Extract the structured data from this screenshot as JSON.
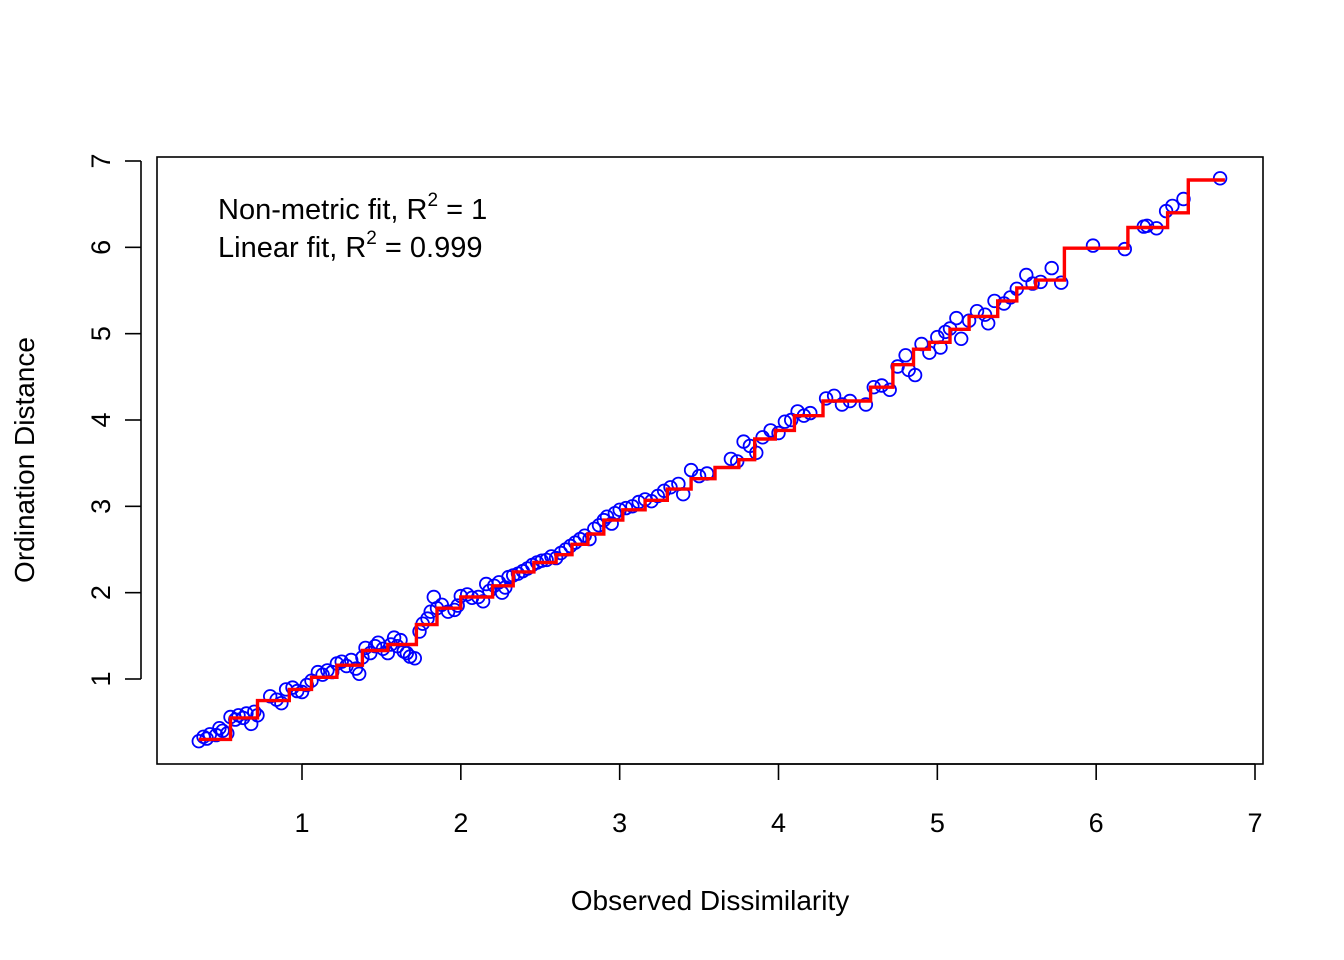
{
  "chart_data": {
    "type": "scatter",
    "title": "",
    "xlabel": "Observed Dissimilarity",
    "ylabel": "Ordination Distance",
    "xlim": [
      0.3,
      7.0
    ],
    "ylim": [
      0.25,
      7.0
    ],
    "x_ticks": [
      "1",
      "2",
      "3",
      "4",
      "5",
      "6",
      "7"
    ],
    "y_ticks": [
      "1",
      "2",
      "3",
      "4",
      "5",
      "6",
      "7"
    ],
    "grid": false,
    "legend": {
      "placement": "top-left",
      "nonmetric": {
        "label": "Non-metric fit, R",
        "sup": "2",
        "rest": " = 1"
      },
      "linear": {
        "label": "Linear fit, R",
        "sup": "2",
        "rest": " = 0.999"
      }
    },
    "colors": {
      "points": "#0000FF",
      "fit_line": "#FF0000",
      "axes": "#000000"
    },
    "series": [
      {
        "name": "Observed points",
        "style": "open-circle",
        "points": [
          [
            0.35,
            0.28
          ],
          [
            0.38,
            0.33
          ],
          [
            0.4,
            0.31
          ],
          [
            0.42,
            0.36
          ],
          [
            0.46,
            0.35
          ],
          [
            0.48,
            0.43
          ],
          [
            0.5,
            0.4
          ],
          [
            0.53,
            0.37
          ],
          [
            0.55,
            0.56
          ],
          [
            0.58,
            0.53
          ],
          [
            0.6,
            0.58
          ],
          [
            0.63,
            0.55
          ],
          [
            0.65,
            0.6
          ],
          [
            0.68,
            0.48
          ],
          [
            0.7,
            0.62
          ],
          [
            0.72,
            0.58
          ],
          [
            0.8,
            0.8
          ],
          [
            0.84,
            0.76
          ],
          [
            0.87,
            0.72
          ],
          [
            0.9,
            0.88
          ],
          [
            0.94,
            0.9
          ],
          [
            0.97,
            0.86
          ],
          [
            1.0,
            0.85
          ],
          [
            1.03,
            0.93
          ],
          [
            1.06,
            0.98
          ],
          [
            1.1,
            1.08
          ],
          [
            1.13,
            1.05
          ],
          [
            1.16,
            1.1
          ],
          [
            1.19,
            1.08
          ],
          [
            1.22,
            1.18
          ],
          [
            1.25,
            1.2
          ],
          [
            1.28,
            1.15
          ],
          [
            1.31,
            1.22
          ],
          [
            1.34,
            1.12
          ],
          [
            1.36,
            1.06
          ],
          [
            1.38,
            1.25
          ],
          [
            1.4,
            1.36
          ],
          [
            1.43,
            1.3
          ],
          [
            1.46,
            1.38
          ],
          [
            1.48,
            1.42
          ],
          [
            1.51,
            1.35
          ],
          [
            1.54,
            1.3
          ],
          [
            1.56,
            1.4
          ],
          [
            1.58,
            1.48
          ],
          [
            1.6,
            1.38
          ],
          [
            1.62,
            1.45
          ],
          [
            1.64,
            1.32
          ],
          [
            1.66,
            1.3
          ],
          [
            1.68,
            1.26
          ],
          [
            1.71,
            1.24
          ],
          [
            1.74,
            1.55
          ],
          [
            1.76,
            1.64
          ],
          [
            1.79,
            1.7
          ],
          [
            1.81,
            1.78
          ],
          [
            1.83,
            1.95
          ],
          [
            1.85,
            1.82
          ],
          [
            1.88,
            1.86
          ],
          [
            1.92,
            1.78
          ],
          [
            1.96,
            1.8
          ],
          [
            1.98,
            1.85
          ],
          [
            2.0,
            1.96
          ],
          [
            2.04,
            1.98
          ],
          [
            2.07,
            1.94
          ],
          [
            2.11,
            1.95
          ],
          [
            2.14,
            1.9
          ],
          [
            2.16,
            2.1
          ],
          [
            2.18,
            2.02
          ],
          [
            2.21,
            2.08
          ],
          [
            2.24,
            2.12
          ],
          [
            2.26,
            2.0
          ],
          [
            2.28,
            2.06
          ],
          [
            2.3,
            2.18
          ],
          [
            2.33,
            2.2
          ],
          [
            2.36,
            2.22
          ],
          [
            2.39,
            2.25
          ],
          [
            2.42,
            2.28
          ],
          [
            2.45,
            2.32
          ],
          [
            2.48,
            2.35
          ],
          [
            2.51,
            2.37
          ],
          [
            2.54,
            2.38
          ],
          [
            2.57,
            2.42
          ],
          [
            2.6,
            2.4
          ],
          [
            2.63,
            2.46
          ],
          [
            2.66,
            2.5
          ],
          [
            2.69,
            2.54
          ],
          [
            2.72,
            2.58
          ],
          [
            2.75,
            2.62
          ],
          [
            2.78,
            2.66
          ],
          [
            2.81,
            2.62
          ],
          [
            2.84,
            2.74
          ],
          [
            2.87,
            2.78
          ],
          [
            2.9,
            2.84
          ],
          [
            2.92,
            2.88
          ],
          [
            2.95,
            2.8
          ],
          [
            2.97,
            2.92
          ],
          [
            3.0,
            2.96
          ],
          [
            3.04,
            2.98
          ],
          [
            3.08,
            3.0
          ],
          [
            3.12,
            3.05
          ],
          [
            3.16,
            3.08
          ],
          [
            3.2,
            3.06
          ],
          [
            3.24,
            3.12
          ],
          [
            3.28,
            3.18
          ],
          [
            3.32,
            3.22
          ],
          [
            3.37,
            3.26
          ],
          [
            3.4,
            3.14
          ],
          [
            3.45,
            3.42
          ],
          [
            3.5,
            3.35
          ],
          [
            3.55,
            3.38
          ],
          [
            3.7,
            3.55
          ],
          [
            3.74,
            3.52
          ],
          [
            3.78,
            3.75
          ],
          [
            3.82,
            3.7
          ],
          [
            3.86,
            3.62
          ],
          [
            3.9,
            3.8
          ],
          [
            3.95,
            3.88
          ],
          [
            4.0,
            3.85
          ],
          [
            4.04,
            3.98
          ],
          [
            4.08,
            4.0
          ],
          [
            4.12,
            4.1
          ],
          [
            4.16,
            4.05
          ],
          [
            4.2,
            4.08
          ],
          [
            4.3,
            4.25
          ],
          [
            4.35,
            4.28
          ],
          [
            4.4,
            4.18
          ],
          [
            4.45,
            4.22
          ],
          [
            4.55,
            4.18
          ],
          [
            4.6,
            4.38
          ],
          [
            4.65,
            4.4
          ],
          [
            4.7,
            4.35
          ],
          [
            4.75,
            4.62
          ],
          [
            4.8,
            4.75
          ],
          [
            4.82,
            4.58
          ],
          [
            4.86,
            4.52
          ],
          [
            4.9,
            4.88
          ],
          [
            4.95,
            4.78
          ],
          [
            5.0,
            4.96
          ],
          [
            5.02,
            4.84
          ],
          [
            5.05,
            5.02
          ],
          [
            5.08,
            5.06
          ],
          [
            5.12,
            5.18
          ],
          [
            5.15,
            4.94
          ],
          [
            5.2,
            5.15
          ],
          [
            5.25,
            5.26
          ],
          [
            5.3,
            5.22
          ],
          [
            5.32,
            5.12
          ],
          [
            5.36,
            5.38
          ],
          [
            5.42,
            5.35
          ],
          [
            5.46,
            5.42
          ],
          [
            5.5,
            5.52
          ],
          [
            5.56,
            5.68
          ],
          [
            5.6,
            5.58
          ],
          [
            5.65,
            5.6
          ],
          [
            5.72,
            5.76
          ],
          [
            5.78,
            5.59
          ],
          [
            5.98,
            6.02
          ],
          [
            6.18,
            5.98
          ],
          [
            6.3,
            6.24
          ],
          [
            6.32,
            6.25
          ],
          [
            6.38,
            6.22
          ],
          [
            6.44,
            6.42
          ],
          [
            6.48,
            6.48
          ],
          [
            6.55,
            6.56
          ],
          [
            6.78,
            6.8
          ]
        ]
      },
      {
        "name": "Non-metric fit",
        "style": "step-line",
        "points": [
          [
            0.35,
            0.3
          ],
          [
            0.55,
            0.55
          ],
          [
            0.72,
            0.75
          ],
          [
            0.92,
            0.88
          ],
          [
            1.06,
            1.02
          ],
          [
            1.22,
            1.16
          ],
          [
            1.38,
            1.33
          ],
          [
            1.54,
            1.4
          ],
          [
            1.72,
            1.63
          ],
          [
            1.85,
            1.82
          ],
          [
            2.0,
            1.95
          ],
          [
            2.2,
            2.08
          ],
          [
            2.33,
            2.24
          ],
          [
            2.46,
            2.35
          ],
          [
            2.6,
            2.44
          ],
          [
            2.7,
            2.56
          ],
          [
            2.8,
            2.68
          ],
          [
            2.9,
            2.84
          ],
          [
            3.02,
            2.96
          ],
          [
            3.16,
            3.07
          ],
          [
            3.3,
            3.2
          ],
          [
            3.45,
            3.32
          ],
          [
            3.6,
            3.45
          ],
          [
            3.75,
            3.54
          ],
          [
            3.85,
            3.78
          ],
          [
            3.98,
            3.88
          ],
          [
            4.1,
            4.05
          ],
          [
            4.28,
            4.22
          ],
          [
            4.58,
            4.38
          ],
          [
            4.72,
            4.64
          ],
          [
            4.85,
            4.82
          ],
          [
            4.95,
            4.9
          ],
          [
            5.08,
            5.05
          ],
          [
            5.2,
            5.2
          ],
          [
            5.38,
            5.38
          ],
          [
            5.5,
            5.53
          ],
          [
            5.62,
            5.62
          ],
          [
            5.8,
            5.99
          ],
          [
            6.2,
            6.23
          ],
          [
            6.45,
            6.4
          ],
          [
            6.58,
            6.78
          ],
          [
            6.8,
            6.8
          ]
        ]
      }
    ]
  }
}
